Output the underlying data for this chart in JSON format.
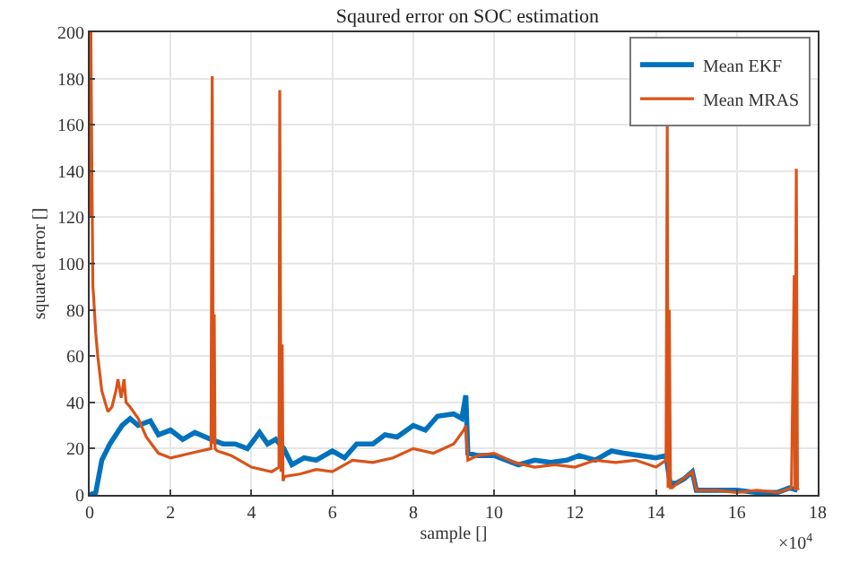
{
  "chart_data": {
    "type": "line",
    "title": "Sqaured error on SOC estimation",
    "xlabel": "sample []",
    "ylabel": "squared error []",
    "annotations": [
      "×10$^{4}$"
    ],
    "xlim": [
      0,
      18
    ],
    "xticks": [
      0,
      2,
      4,
      6,
      8,
      10,
      12,
      14,
      16,
      18
    ],
    "ylim": [
      0,
      200
    ],
    "yticks": [
      0,
      20,
      40,
      60,
      80,
      100,
      120,
      140,
      160,
      180,
      200
    ],
    "grid": true,
    "legend": "top right",
    "line_style": "solid",
    "marker": "none",
    "series": [
      {
        "name": "Mean EKF",
        "color": "#0072bd",
        "x": [
          0,
          0.15,
          0.3,
          0.5,
          0.8,
          1.0,
          1.2,
          1.5,
          1.7,
          2.0,
          2.3,
          2.6,
          3.0,
          3.3,
          3.6,
          3.9,
          4.2,
          4.4,
          4.6,
          4.8,
          5.0,
          5.3,
          5.6,
          6.0,
          6.3,
          6.6,
          7.0,
          7.3,
          7.6,
          8.0,
          8.3,
          8.6,
          9.0,
          9.2,
          9.3,
          9.35,
          9.6,
          10.0,
          10.3,
          10.6,
          11.0,
          11.4,
          11.8,
          12.1,
          12.5,
          12.9,
          13.2,
          13.6,
          14.0,
          14.25,
          14.35,
          14.5,
          14.7,
          14.9,
          15.0,
          15.5,
          16.0,
          16.5,
          17.0,
          17.3,
          17.5
        ],
        "values": [
          0,
          1,
          15,
          22,
          30,
          33,
          30,
          32,
          26,
          28,
          24,
          27,
          24,
          22,
          22,
          20,
          27,
          22,
          24,
          20,
          13,
          16,
          15,
          19,
          16,
          22,
          22,
          26,
          25,
          30,
          28,
          34,
          35,
          33,
          43,
          18,
          17,
          17,
          15,
          13,
          15,
          14,
          15,
          17,
          15,
          19,
          18,
          17,
          16,
          17,
          5,
          5,
          7,
          10,
          2,
          2,
          2,
          1,
          1,
          3,
          2
        ]
      },
      {
        "name": "Mean MRAS",
        "color": "#d95319",
        "x": [
          0,
          0.03,
          0.05,
          0.08,
          0.1,
          0.15,
          0.2,
          0.3,
          0.45,
          0.55,
          0.65,
          0.7,
          0.78,
          0.85,
          0.9,
          1.0,
          1.2,
          1.4,
          1.7,
          2.0,
          2.5,
          3.0,
          3.03,
          3.06,
          3.08,
          3.1,
          3.15,
          3.5,
          4.0,
          4.5,
          4.68,
          4.7,
          4.73,
          4.76,
          4.78,
          4.82,
          5.2,
          5.6,
          6.0,
          6.5,
          7.0,
          7.5,
          8.0,
          8.5,
          9.0,
          9.25,
          9.3,
          9.35,
          9.6,
          10.0,
          10.5,
          11.0,
          11.5,
          12.0,
          12.5,
          13.0,
          13.5,
          14.0,
          14.25,
          14.28,
          14.3,
          14.33,
          14.36,
          14.4,
          14.6,
          14.9,
          15.0,
          15.5,
          16.0,
          16.5,
          17.0,
          17.35,
          17.42,
          17.44,
          17.47,
          17.5,
          17.52
        ],
        "values": [
          120,
          200,
          150,
          90,
          85,
          70,
          60,
          45,
          36,
          38,
          45,
          50,
          42,
          50,
          40,
          38,
          33,
          25,
          18,
          16,
          18,
          20,
          181,
          22,
          78,
          20,
          19,
          17,
          12,
          10,
          12,
          175,
          10,
          65,
          6,
          8,
          9,
          11,
          10,
          15,
          14,
          16,
          20,
          18,
          22,
          28,
          30,
          15,
          17,
          18,
          14,
          12,
          13,
          12,
          15,
          14,
          15,
          12,
          15,
          160,
          3,
          80,
          3,
          3,
          6,
          10,
          2,
          2,
          1,
          2,
          1,
          3,
          95,
          2,
          141,
          3,
          2
        ]
      }
    ]
  }
}
